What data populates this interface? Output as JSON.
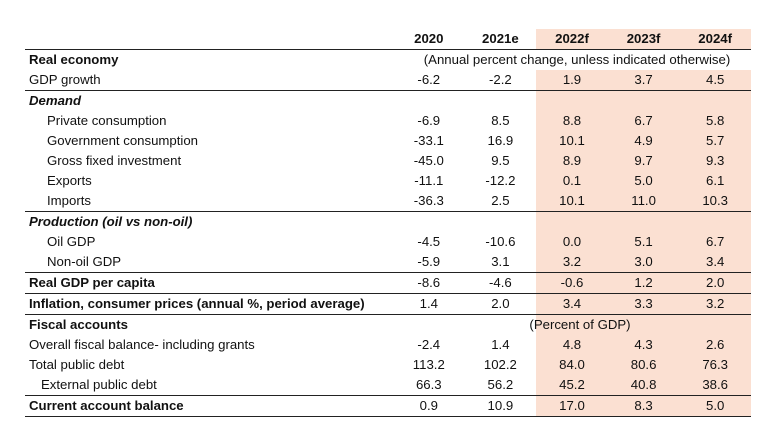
{
  "header": {
    "label": "",
    "years": [
      "2020",
      "2021e",
      "2022f",
      "2023f",
      "2024f"
    ]
  },
  "rows": [
    {
      "id": "real-economy",
      "label": "Real economy",
      "style": "bold",
      "indent": 0,
      "note": "(Annual percent change, unless indicated otherwise)",
      "values": [],
      "border": "none"
    },
    {
      "id": "gdp-growth",
      "label": "GDP growth",
      "style": "plain",
      "indent": 0,
      "values": [
        "-6.2",
        "-2.2",
        "1.9",
        "3.7",
        "4.5"
      ],
      "border": "none"
    },
    {
      "id": "demand",
      "label": "Demand",
      "style": "ital",
      "indent": 0,
      "values": [],
      "border": "top"
    },
    {
      "id": "private-consumption",
      "label": "Private consumption",
      "style": "plain",
      "indent": 1,
      "values": [
        "-6.9",
        "8.5",
        "8.8",
        "6.7",
        "5.8"
      ],
      "border": "none"
    },
    {
      "id": "government-consumption",
      "label": "Government consumption",
      "style": "plain",
      "indent": 1,
      "values": [
        "-33.1",
        "16.9",
        "10.1",
        "4.9",
        "5.7"
      ],
      "border": "none"
    },
    {
      "id": "gross-fixed-investment",
      "label": "Gross fixed investment",
      "style": "plain",
      "indent": 1,
      "values": [
        "-45.0",
        "9.5",
        "8.9",
        "9.7",
        "9.3"
      ],
      "border": "none"
    },
    {
      "id": "exports",
      "label": "Exports",
      "style": "plain",
      "indent": 1,
      "values": [
        "-11.1",
        "-12.2",
        "0.1",
        "5.0",
        "6.1"
      ],
      "border": "none"
    },
    {
      "id": "imports",
      "label": "Imports",
      "style": "plain",
      "indent": 1,
      "values": [
        "-36.3",
        "2.5",
        "10.1",
        "11.0",
        "10.3"
      ],
      "border": "none"
    },
    {
      "id": "production",
      "label": "Production (oil vs non-oil)",
      "style": "ital",
      "indent": 0,
      "values": [],
      "border": "top"
    },
    {
      "id": "oil-gdp",
      "label": "Oil GDP",
      "style": "plain",
      "indent": 1,
      "values": [
        "-4.5",
        "-10.6",
        "0.0",
        "5.1",
        "6.7"
      ],
      "border": "none"
    },
    {
      "id": "non-oil-gdp",
      "label": "Non-oil GDP",
      "style": "plain",
      "indent": 1,
      "values": [
        "-5.9",
        "3.1",
        "3.2",
        "3.0",
        "3.4"
      ],
      "border": "none"
    },
    {
      "id": "real-gdp-per-capita",
      "label": "Real GDP per capita",
      "style": "bold",
      "indent": 0,
      "values": [
        "-8.6",
        "-4.6",
        "-0.6",
        "1.2",
        "2.0"
      ],
      "border": "top"
    },
    {
      "id": "inflation",
      "label": "Inflation, consumer prices (annual %, period average)",
      "style": "bold",
      "indent": 0,
      "values": [
        "1.4",
        "2.0",
        "3.4",
        "3.3",
        "3.2"
      ],
      "border": "top"
    },
    {
      "id": "fiscal-accounts",
      "label": "Fiscal accounts",
      "style": "bold",
      "indent": 0,
      "note": "(Percent of GDP)",
      "values": [],
      "border": "top"
    },
    {
      "id": "overall-fiscal-balance",
      "label": "Overall fiscal balance- including grants",
      "style": "plain",
      "indent": 0,
      "values": [
        "-2.4",
        "1.4",
        "4.8",
        "4.3",
        "2.6"
      ],
      "border": "none"
    },
    {
      "id": "total-public-debt",
      "label": "Total public debt",
      "style": "plain",
      "indent": 0,
      "values": [
        "113.2",
        "102.2",
        "84.0",
        "80.6",
        "76.3"
      ],
      "border": "none"
    },
    {
      "id": "external-public-debt",
      "label": "External public debt",
      "style": "plain",
      "indent": 2,
      "values": [
        "66.3",
        "56.2",
        "45.2",
        "40.8",
        "38.6"
      ],
      "border": "none"
    },
    {
      "id": "current-account-balance",
      "label": "Current account balance",
      "style": "bold",
      "indent": 0,
      "values": [
        "0.9",
        "10.9",
        "17.0",
        "8.3",
        "5.0"
      ],
      "border": "topbottom"
    }
  ],
  "colors": {
    "forecast_fill": "#fbe0d2",
    "rule": "#222222"
  }
}
